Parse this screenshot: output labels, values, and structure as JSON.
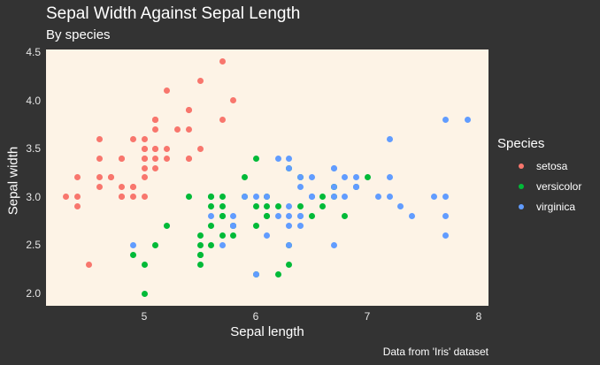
{
  "chart_data": {
    "type": "scatter",
    "title": "Sepal Width Against Sepal Length",
    "subtitle": "By species",
    "xlabel": "Sepal length",
    "ylabel": "Sepal width",
    "caption": "Data from 'Iris' dataset",
    "xlim": [
      4.2,
      8.1
    ],
    "ylim": [
      1.9,
      4.5
    ],
    "x_ticks": [
      "5",
      "6",
      "7",
      "8"
    ],
    "y_ticks": [
      "2.0",
      "2.5",
      "3.0",
      "3.5",
      "4.0",
      "4.5"
    ],
    "grid": false,
    "legend_position": "right",
    "legend_title": "Species",
    "series": [
      {
        "name": "setosa",
        "color": "#F8766D",
        "points": [
          [
            5.1,
            3.5
          ],
          [
            4.9,
            3.0
          ],
          [
            4.7,
            3.2
          ],
          [
            4.6,
            3.1
          ],
          [
            5.0,
            3.6
          ],
          [
            5.4,
            3.9
          ],
          [
            4.6,
            3.4
          ],
          [
            5.0,
            3.4
          ],
          [
            4.4,
            2.9
          ],
          [
            4.9,
            3.1
          ],
          [
            5.4,
            3.7
          ],
          [
            4.8,
            3.4
          ],
          [
            4.8,
            3.0
          ],
          [
            4.3,
            3.0
          ],
          [
            5.8,
            4.0
          ],
          [
            5.7,
            4.4
          ],
          [
            5.4,
            3.9
          ],
          [
            5.1,
            3.5
          ],
          [
            5.7,
            3.8
          ],
          [
            5.1,
            3.8
          ],
          [
            5.4,
            3.4
          ],
          [
            5.1,
            3.7
          ],
          [
            4.6,
            3.6
          ],
          [
            5.1,
            3.3
          ],
          [
            4.8,
            3.4
          ],
          [
            5.0,
            3.0
          ],
          [
            5.0,
            3.4
          ],
          [
            5.2,
            3.5
          ],
          [
            5.2,
            3.4
          ],
          [
            4.7,
            3.2
          ],
          [
            4.8,
            3.1
          ],
          [
            5.4,
            3.4
          ],
          [
            5.2,
            4.1
          ],
          [
            5.5,
            4.2
          ],
          [
            4.9,
            3.1
          ],
          [
            5.0,
            3.2
          ],
          [
            5.5,
            3.5
          ],
          [
            4.9,
            3.6
          ],
          [
            4.4,
            3.0
          ],
          [
            5.1,
            3.4
          ],
          [
            5.0,
            3.5
          ],
          [
            4.5,
            2.3
          ],
          [
            4.4,
            3.2
          ],
          [
            5.0,
            3.5
          ],
          [
            5.1,
            3.8
          ],
          [
            4.8,
            3.0
          ],
          [
            5.1,
            3.8
          ],
          [
            4.6,
            3.2
          ],
          [
            5.3,
            3.7
          ],
          [
            5.0,
            3.3
          ]
        ]
      },
      {
        "name": "versicolor",
        "color": "#00BA38",
        "points": [
          [
            7.0,
            3.2
          ],
          [
            6.4,
            3.2
          ],
          [
            6.9,
            3.1
          ],
          [
            5.5,
            2.3
          ],
          [
            6.5,
            2.8
          ],
          [
            5.7,
            2.8
          ],
          [
            6.3,
            3.3
          ],
          [
            4.9,
            2.4
          ],
          [
            6.6,
            2.9
          ],
          [
            5.2,
            2.7
          ],
          [
            5.0,
            2.0
          ],
          [
            5.9,
            3.0
          ],
          [
            6.0,
            2.2
          ],
          [
            6.1,
            2.9
          ],
          [
            5.6,
            2.9
          ],
          [
            6.7,
            3.1
          ],
          [
            5.6,
            3.0
          ],
          [
            5.8,
            2.7
          ],
          [
            6.2,
            2.2
          ],
          [
            5.6,
            2.5
          ],
          [
            5.9,
            3.2
          ],
          [
            6.1,
            2.8
          ],
          [
            6.3,
            2.5
          ],
          [
            6.1,
            2.8
          ],
          [
            6.4,
            2.9
          ],
          [
            6.6,
            3.0
          ],
          [
            6.8,
            2.8
          ],
          [
            6.7,
            3.0
          ],
          [
            6.0,
            2.9
          ],
          [
            5.7,
            2.6
          ],
          [
            5.5,
            2.4
          ],
          [
            5.5,
            2.4
          ],
          [
            5.8,
            2.7
          ],
          [
            6.0,
            2.7
          ],
          [
            5.4,
            3.0
          ],
          [
            6.0,
            3.4
          ],
          [
            6.7,
            3.1
          ],
          [
            6.3,
            2.3
          ],
          [
            5.6,
            3.0
          ],
          [
            5.5,
            2.5
          ],
          [
            5.5,
            2.6
          ],
          [
            6.1,
            3.0
          ],
          [
            5.8,
            2.6
          ],
          [
            5.0,
            2.3
          ],
          [
            5.6,
            2.7
          ],
          [
            5.7,
            3.0
          ],
          [
            5.7,
            2.9
          ],
          [
            6.2,
            2.9
          ],
          [
            5.1,
            2.5
          ],
          [
            5.7,
            2.8
          ]
        ]
      },
      {
        "name": "virginica",
        "color": "#619CFF",
        "points": [
          [
            6.3,
            3.3
          ],
          [
            5.8,
            2.7
          ],
          [
            7.1,
            3.0
          ],
          [
            6.3,
            2.9
          ],
          [
            6.5,
            3.0
          ],
          [
            7.6,
            3.0
          ],
          [
            4.9,
            2.5
          ],
          [
            7.3,
            2.9
          ],
          [
            6.7,
            2.5
          ],
          [
            7.2,
            3.6
          ],
          [
            6.5,
            3.2
          ],
          [
            6.4,
            2.7
          ],
          [
            6.8,
            3.0
          ],
          [
            5.7,
            2.5
          ],
          [
            5.8,
            2.8
          ],
          [
            6.4,
            3.2
          ],
          [
            6.5,
            3.0
          ],
          [
            7.7,
            3.8
          ],
          [
            7.7,
            2.6
          ],
          [
            6.0,
            2.2
          ],
          [
            6.9,
            3.2
          ],
          [
            5.6,
            2.8
          ],
          [
            7.7,
            2.8
          ],
          [
            6.3,
            2.7
          ],
          [
            6.7,
            3.3
          ],
          [
            7.2,
            3.2
          ],
          [
            6.2,
            2.8
          ],
          [
            6.1,
            3.0
          ],
          [
            6.4,
            2.8
          ],
          [
            7.2,
            3.0
          ],
          [
            7.4,
            2.8
          ],
          [
            7.9,
            3.8
          ],
          [
            6.4,
            2.8
          ],
          [
            6.3,
            2.8
          ],
          [
            6.1,
            2.6
          ],
          [
            7.7,
            3.0
          ],
          [
            6.3,
            3.4
          ],
          [
            6.4,
            3.1
          ],
          [
            6.0,
            3.0
          ],
          [
            6.9,
            3.1
          ],
          [
            6.7,
            3.1
          ],
          [
            6.9,
            3.1
          ],
          [
            5.8,
            2.7
          ],
          [
            6.8,
            3.2
          ],
          [
            6.7,
            3.3
          ],
          [
            6.7,
            3.0
          ],
          [
            6.3,
            2.5
          ],
          [
            6.5,
            3.0
          ],
          [
            6.2,
            3.4
          ],
          [
            5.9,
            3.0
          ]
        ]
      }
    ]
  },
  "legend": {
    "title": "Species",
    "items": [
      {
        "label": "setosa",
        "color": "#F8766D"
      },
      {
        "label": "versicolor",
        "color": "#00BA38"
      },
      {
        "label": "virginica",
        "color": "#619CFF"
      }
    ]
  }
}
